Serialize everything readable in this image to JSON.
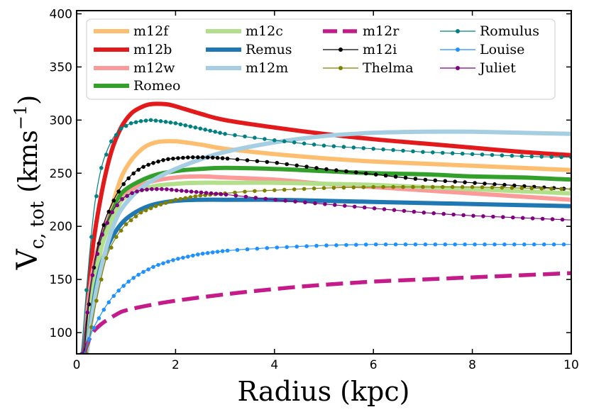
{
  "chart_data": {
    "type": "line",
    "xlabel": "Radius (kpc)",
    "ylabel": {
      "base": "V",
      "sub": "c, tot",
      "unit": "(kms",
      "sup": "−1",
      "close": ")"
    },
    "xlim": [
      0,
      10
    ],
    "ylim": [
      80,
      403
    ],
    "xticks": [
      0,
      2,
      4,
      6,
      8,
      10
    ],
    "yticks": [
      100,
      150,
      200,
      250,
      300,
      350,
      400
    ],
    "grid": false,
    "legend_position": "top",
    "series": [
      {
        "name": "m12f",
        "color": "#fdbf6f",
        "style": "thick",
        "x": [
          0.12,
          0.3,
          0.5,
          0.8,
          1.0,
          1.3,
          1.6,
          2.0,
          2.5,
          3.0,
          4.0,
          5.0,
          6.0,
          7.0,
          8.0,
          9.0,
          10.0
        ],
        "y": [
          80,
          130,
          180,
          232,
          255,
          272,
          279,
          280,
          277,
          273,
          268,
          264,
          261,
          259,
          257,
          255,
          253
        ]
      },
      {
        "name": "m12b",
        "color": "#e31a1c",
        "style": "thick",
        "x": [
          0.15,
          0.3,
          0.5,
          0.7,
          0.9,
          1.1,
          1.3,
          1.5,
          1.8,
          2.0,
          2.5,
          3.0,
          4.0,
          5.0,
          6.0,
          7.0,
          8.0,
          9.0,
          10.0
        ],
        "y": [
          80,
          170,
          230,
          270,
          293,
          306,
          312,
          315,
          315,
          313,
          306,
          300,
          293,
          287,
          282,
          278,
          274,
          270,
          267
        ]
      },
      {
        "name": "m12w",
        "color": "#fb9a99",
        "style": "thick",
        "x": [
          0.12,
          0.3,
          0.5,
          0.8,
          1.0,
          1.5,
          2.0,
          2.5,
          3.0,
          4.0,
          5.0,
          6.0,
          7.0,
          8.0,
          9.0,
          10.0
        ],
        "y": [
          80,
          150,
          190,
          222,
          232,
          242,
          246,
          247,
          246,
          244,
          240,
          237,
          234,
          231,
          228,
          225
        ]
      },
      {
        "name": "Romeo",
        "color": "#33a02c",
        "style": "thick",
        "x": [
          0.15,
          0.3,
          0.5,
          0.8,
          1.0,
          1.5,
          2.0,
          2.5,
          3.0,
          4.0,
          5.0,
          6.0,
          7.0,
          8.0,
          9.0,
          10.0
        ],
        "y": [
          80,
          140,
          185,
          222,
          235,
          247,
          252,
          254,
          255,
          254,
          252,
          250,
          249,
          247,
          246,
          244
        ]
      },
      {
        "name": "m12c",
        "color": "#b2df8a",
        "style": "thick",
        "x": [
          0.15,
          0.3,
          0.5,
          0.8,
          1.0,
          1.5,
          2.0,
          2.5,
          3.0,
          4.0,
          5.0,
          6.0,
          7.0,
          8.0,
          9.0,
          10.0
        ],
        "y": [
          80,
          130,
          180,
          215,
          228,
          237,
          240,
          241,
          241,
          241,
          240,
          239,
          237,
          235,
          233,
          231
        ]
      },
      {
        "name": "Remus",
        "color": "#1f78b4",
        "style": "thick",
        "x": [
          0.2,
          0.4,
          0.6,
          0.8,
          1.0,
          1.3,
          1.6,
          2.0,
          2.5,
          3.0,
          4.0,
          5.0,
          6.0,
          7.0,
          8.0,
          9.0,
          10.0
        ],
        "y": [
          80,
          145,
          178,
          196,
          207,
          216,
          221,
          224,
          225,
          225,
          225,
          224,
          223,
          222,
          221,
          220,
          219
        ]
      },
      {
        "name": "m12m",
        "color": "#a6cee3",
        "style": "thick",
        "x": [
          0.2,
          0.4,
          0.6,
          0.8,
          1.0,
          1.3,
          1.6,
          2.0,
          2.5,
          3.0,
          4.0,
          5.0,
          6.0,
          7.0,
          8.0,
          9.0,
          10.0
        ],
        "y": [
          80,
          140,
          180,
          207,
          222,
          236,
          245,
          254,
          263,
          270,
          279,
          285,
          288,
          289,
          289,
          288,
          287
        ]
      },
      {
        "name": "m12r",
        "color": "#c51b8a",
        "style": "dashed",
        "x": [
          0.15,
          0.3,
          0.5,
          0.8,
          1.0,
          1.5,
          2.0,
          3.0,
          4.0,
          5.0,
          6.0,
          7.0,
          8.0,
          9.0,
          10.0
        ],
        "y": [
          80,
          98,
          108,
          117,
          121,
          126,
          130,
          136,
          141,
          145,
          148,
          150,
          152,
          154,
          156
        ]
      },
      {
        "name": "m12i",
        "color": "#000000",
        "style": "marker",
        "x": [
          0.15,
          0.3,
          0.5,
          0.7,
          0.9,
          1.1,
          1.3,
          1.5,
          1.8,
          2.0,
          2.3,
          2.6,
          3.0,
          3.5,
          4.0,
          5.0,
          6.0,
          7.0,
          8.0,
          9.0,
          10.0
        ],
        "y": [
          80,
          150,
          195,
          220,
          237,
          248,
          255,
          259,
          263,
          264,
          265,
          265,
          264,
          262,
          260,
          254,
          249,
          244,
          241,
          238,
          235
        ]
      },
      {
        "name": "Thelma",
        "color": "#808000",
        "style": "marker",
        "x": [
          0.2,
          0.4,
          0.6,
          0.8,
          1.0,
          1.3,
          1.6,
          2.0,
          2.5,
          3.0,
          3.5,
          4.0,
          5.0,
          6.0,
          7.0,
          8.0,
          9.0,
          10.0
        ],
        "y": [
          80,
          130,
          170,
          190,
          202,
          213,
          219,
          225,
          229,
          231,
          233,
          234,
          236,
          237,
          237,
          237,
          236,
          235
        ]
      },
      {
        "name": "Romulus",
        "color": "#008080",
        "style": "marker",
        "x": [
          0.1,
          0.2,
          0.35,
          0.5,
          0.7,
          0.9,
          1.1,
          1.3,
          1.5,
          1.7,
          2.0,
          2.5,
          3.0,
          4.0,
          5.0,
          6.0,
          7.0,
          8.0,
          9.0,
          10.0
        ],
        "y": [
          80,
          140,
          215,
          255,
          280,
          292,
          297,
          299,
          300,
          299,
          297,
          292,
          287,
          281,
          276,
          273,
          270,
          268,
          266,
          265
        ]
      },
      {
        "name": "Louise",
        "color": "#1e90ff",
        "style": "marker",
        "x": [
          0.15,
          0.3,
          0.5,
          0.7,
          0.9,
          1.1,
          1.3,
          1.6,
          2.0,
          2.5,
          3.0,
          4.0,
          5.0,
          6.0,
          7.0,
          8.0,
          9.0,
          10.0
        ],
        "y": [
          80,
          100,
          118,
          132,
          142,
          150,
          156,
          163,
          169,
          174,
          177,
          180,
          182,
          183,
          183,
          183,
          183,
          183
        ]
      },
      {
        "name": "Juliet",
        "color": "#800080",
        "style": "marker",
        "x": [
          0.12,
          0.3,
          0.5,
          0.7,
          0.9,
          1.1,
          1.3,
          1.5,
          1.8,
          2.0,
          2.5,
          3.0,
          4.0,
          5.0,
          6.0,
          7.0,
          8.0,
          9.0,
          10.0
        ],
        "y": [
          80,
          150,
          190,
          212,
          225,
          231,
          234,
          235,
          235,
          234,
          232,
          230,
          225,
          221,
          217,
          213,
          210,
          208,
          206
        ]
      }
    ],
    "legend_layout": [
      [
        "m12f",
        "m12c",
        "m12r",
        "Romulus"
      ],
      [
        "m12b",
        "Remus",
        "m12i",
        "Louise"
      ],
      [
        "m12w",
        "m12m",
        "Thelma",
        "Juliet"
      ],
      [
        "Romeo"
      ]
    ]
  }
}
